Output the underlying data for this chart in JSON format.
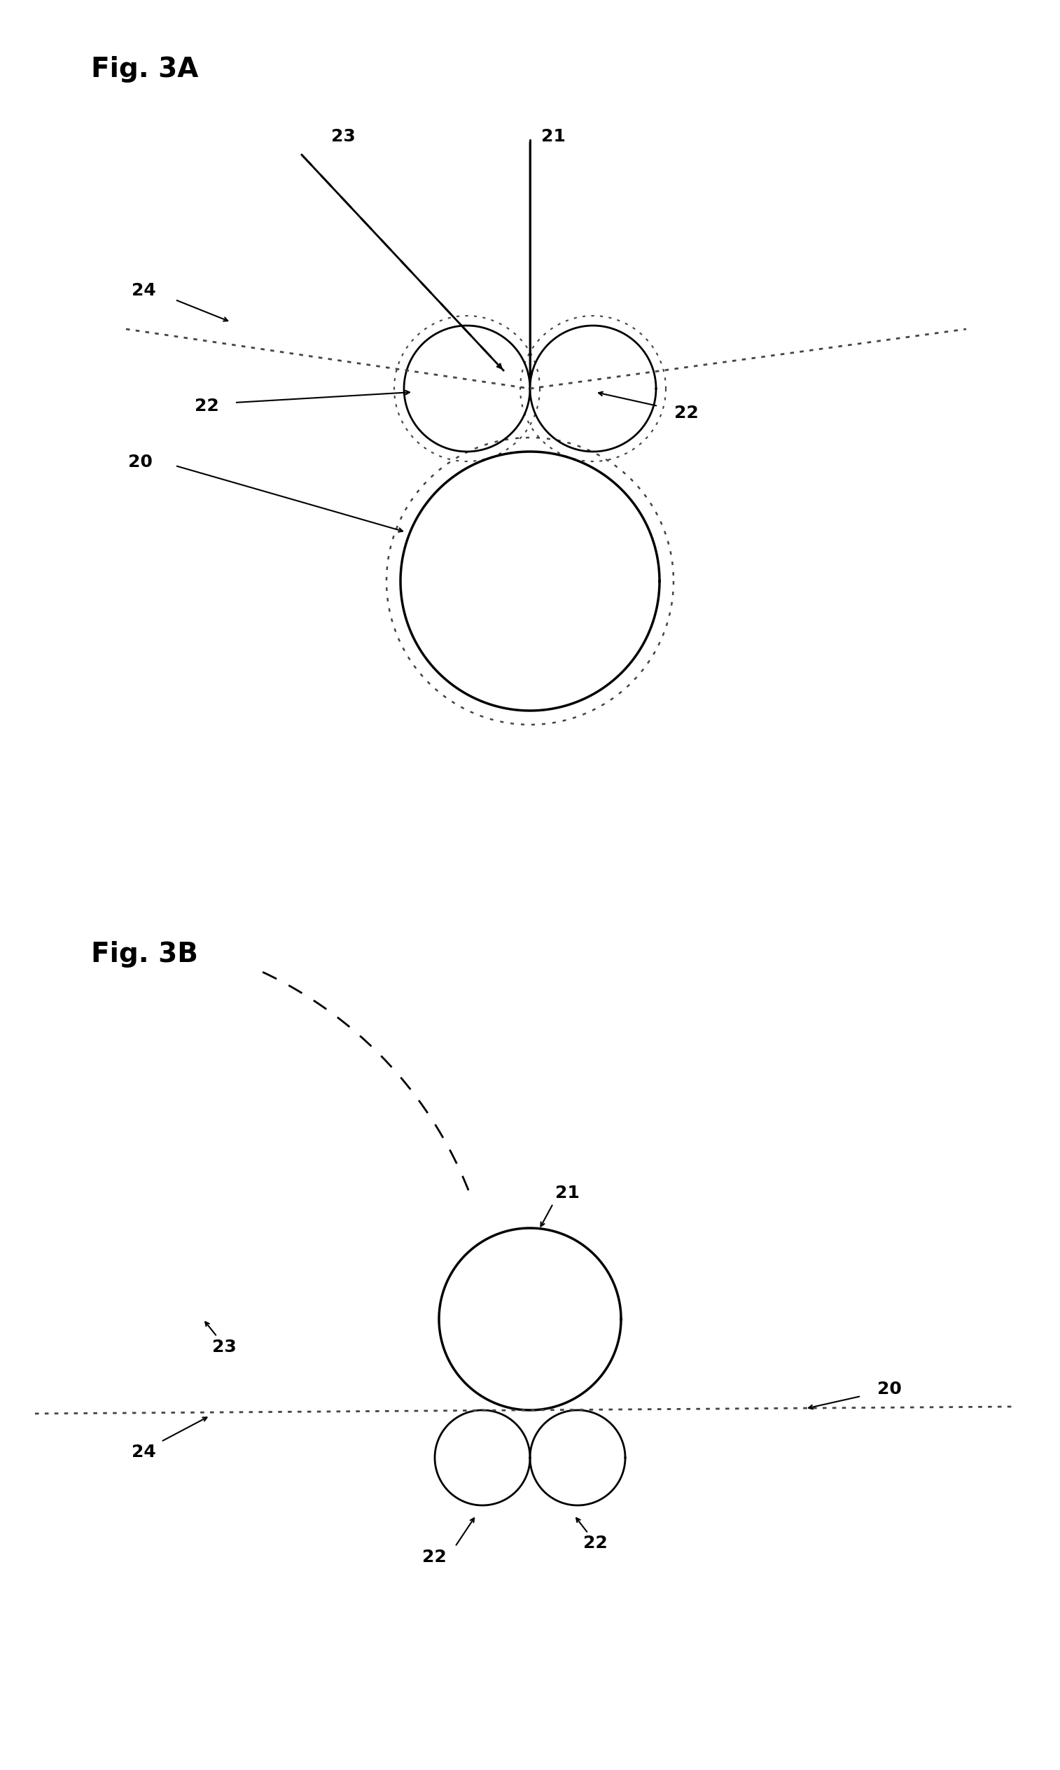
{
  "fig_title_A": "Fig. 3A",
  "fig_title_B": "Fig. 3B",
  "bg_color": "#ffffff",
  "line_color": "#000000",
  "label_fontsize": 18,
  "title_fontsize": 28
}
